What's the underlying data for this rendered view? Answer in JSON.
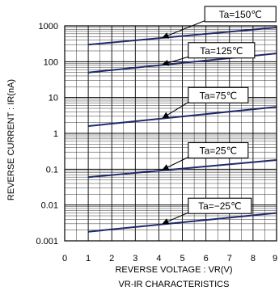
{
  "chart_data": {
    "type": "line",
    "title": "VR-IR CHARACTERISTICS",
    "xlabel": "REVERSE VOLTAGE : VR(V)",
    "ylabel": "REVERSE CURRENT : IR(nA)",
    "x_ticks": [
      "0",
      "1",
      "2",
      "3",
      "4",
      "5",
      "6",
      "7",
      "8",
      "9"
    ],
    "y_ticks": [
      "1000",
      "100",
      "10",
      "1",
      "0.1",
      "0.01",
      "0.001"
    ],
    "x_range": [
      0,
      9
    ],
    "y_range": [
      0.001,
      1000
    ],
    "y_scale": "log",
    "grid": true,
    "line_color": "#1f2a6b",
    "series": [
      {
        "name": "Ta=150℃",
        "x": [
          1,
          9
        ],
        "values": [
          300,
          900
        ]
      },
      {
        "name": "Ta=125℃",
        "x": [
          1,
          9
        ],
        "values": [
          50,
          170
        ]
      },
      {
        "name": "Ta=75℃",
        "x": [
          1,
          9
        ],
        "values": [
          1.6,
          5.5
        ]
      },
      {
        "name": "Ta=25℃",
        "x": [
          1,
          9
        ],
        "values": [
          0.06,
          0.18
        ]
      },
      {
        "name": "Ta=−25℃",
        "x": [
          1,
          9
        ],
        "values": [
          0.0018,
          0.006
        ]
      }
    ]
  }
}
